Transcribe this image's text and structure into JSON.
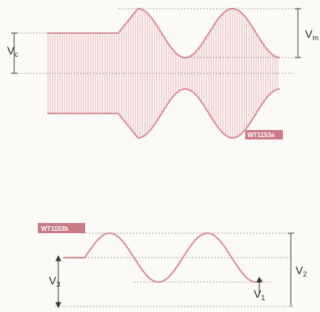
{
  "figure_a": {
    "label_vc": "V",
    "label_vc_sub": "c",
    "label_vm": "V",
    "label_vm_sub": "m",
    "tag": "WT1153a",
    "colors": {
      "envelope": "#d88f98",
      "carrier": "#e6a3ac",
      "dotted": "#8d8d8d",
      "marker": "#3a3a3a",
      "tag_bg": "#c97c87"
    }
  },
  "figure_b": {
    "label_v3": "V",
    "label_v3_sub": "3",
    "label_v2": "V",
    "label_v2_sub": "2",
    "label_v1": "V",
    "label_v1_sub": "1",
    "tag": "WT1153b",
    "colors": {
      "wave": "#d88f98",
      "dotted": "#8d8d8d",
      "marker": "#3a3a3a",
      "tag_bg": "#c97c87"
    }
  }
}
